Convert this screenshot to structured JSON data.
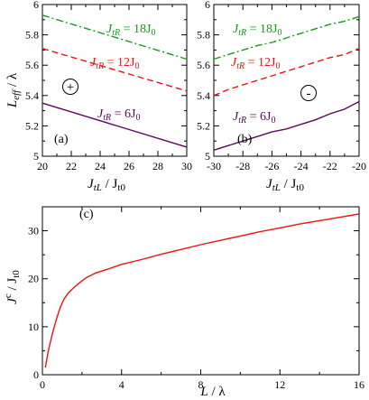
{
  "panels": {
    "a": {
      "tag": "(a)",
      "symbol": "+",
      "ylabel": {
        "main": "L",
        "sub": "eff",
        "tail": " / λ"
      },
      "xlabel": {
        "a": "J",
        "asub": "tL",
        "mid": " / J",
        "bsub": "t0"
      }
    },
    "b": {
      "tag": "(b)",
      "symbol": "-",
      "xlabel": {
        "a": "J",
        "asub": "tL",
        "mid": " / J",
        "bsub": "t0"
      }
    },
    "c": {
      "tag": "(c)",
      "ylabel": {
        "a": "J",
        "asup": "c",
        "mid": " / J",
        "bsub": "t0"
      },
      "xlabel": {
        "a": "L",
        "tail": " / λ"
      }
    }
  },
  "series_labels": {
    "s18": {
      "a": "J",
      "sub": "tR",
      "mid": " = 18J",
      "tail": "0"
    },
    "s12": {
      "a": "J",
      "sub": "tR",
      "mid": " = 12J",
      "tail": "0"
    },
    "s6": {
      "a": "J",
      "sub": "tR",
      "mid": " = 6J",
      "tail": "0"
    }
  },
  "colors": {
    "s18": "#1a9a1a",
    "s12": "#ee1111",
    "s6": "#5a0a5a",
    "jc": "#ee1111",
    "axis": "#000000"
  },
  "chart_data": [
    {
      "type": "line",
      "panel": "a",
      "x_ticks": [
        "20",
        "22",
        "24",
        "26",
        "28",
        "30"
      ],
      "y_ticks": [
        "5",
        "5.2",
        "5.4",
        "5.6",
        "5.8",
        "6"
      ],
      "xlim": [
        20,
        30
      ],
      "ylim": [
        5,
        6
      ],
      "series": [
        {
          "key": "s18",
          "style": "dash-dot",
          "x": [
            20,
            30
          ],
          "y": [
            5.93,
            5.64
          ]
        },
        {
          "key": "s12",
          "style": "dashed",
          "x": [
            20,
            30
          ],
          "y": [
            5.71,
            5.43
          ]
        },
        {
          "key": "s6",
          "style": "solid",
          "x": [
            20,
            30
          ],
          "y": [
            5.35,
            5.06
          ]
        }
      ]
    },
    {
      "type": "line",
      "panel": "b",
      "x_ticks": [
        "-30",
        "-28",
        "-26",
        "-24",
        "-22",
        "-20"
      ],
      "y_ticks": [
        "5",
        "5.2",
        "5.4",
        "5.6",
        "5.8",
        "6"
      ],
      "xlim": [
        -30,
        -20
      ],
      "ylim": [
        5,
        6
      ],
      "series": [
        {
          "key": "s18",
          "style": "dash-dot",
          "x": [
            -30,
            -29,
            -28,
            -27,
            -26,
            -25,
            -24,
            -23,
            -22,
            -21,
            -20
          ],
          "y": [
            5.64,
            5.67,
            5.7,
            5.73,
            5.75,
            5.78,
            5.81,
            5.84,
            5.87,
            5.89,
            5.92
          ]
        },
        {
          "key": "s12",
          "style": "dashed",
          "x": [
            -30,
            -29,
            -28,
            -27,
            -26,
            -25,
            -24,
            -23,
            -22,
            -21,
            -20
          ],
          "y": [
            5.4,
            5.44,
            5.47,
            5.5,
            5.53,
            5.56,
            5.59,
            5.62,
            5.65,
            5.67,
            5.71
          ]
        },
        {
          "key": "s6",
          "style": "solid",
          "x": [
            -30,
            -29,
            -28,
            -27,
            -26,
            -25,
            -24,
            -23,
            -22,
            -21,
            -20
          ],
          "y": [
            5.04,
            5.07,
            5.1,
            5.13,
            5.16,
            5.18,
            5.21,
            5.24,
            5.28,
            5.31,
            5.36
          ]
        }
      ]
    },
    {
      "type": "line",
      "panel": "c",
      "x_ticks": [
        "0",
        "4",
        "8",
        "12",
        "16"
      ],
      "y_ticks": [
        "0",
        "10",
        "20",
        "30"
      ],
      "xlim": [
        0,
        16
      ],
      "ylim": [
        0,
        35
      ],
      "series": [
        {
          "key": "jc",
          "style": "solid",
          "x": [
            0.15,
            0.3,
            0.5,
            0.7,
            0.9,
            1.1,
            1.3,
            1.5,
            1.8,
            2.2,
            2.7,
            3.3,
            4,
            5,
            6,
            7,
            8,
            9,
            10,
            11,
            12,
            13,
            14,
            15,
            16
          ],
          "y": [
            1.5,
            5,
            8.5,
            11.5,
            14,
            15.8,
            17,
            17.8,
            18.9,
            20.2,
            21.2,
            22,
            23,
            24,
            25.1,
            26.1,
            27.1,
            28,
            28.9,
            29.8,
            30.6,
            31.4,
            32.1,
            32.8,
            33.5
          ]
        }
      ]
    }
  ]
}
